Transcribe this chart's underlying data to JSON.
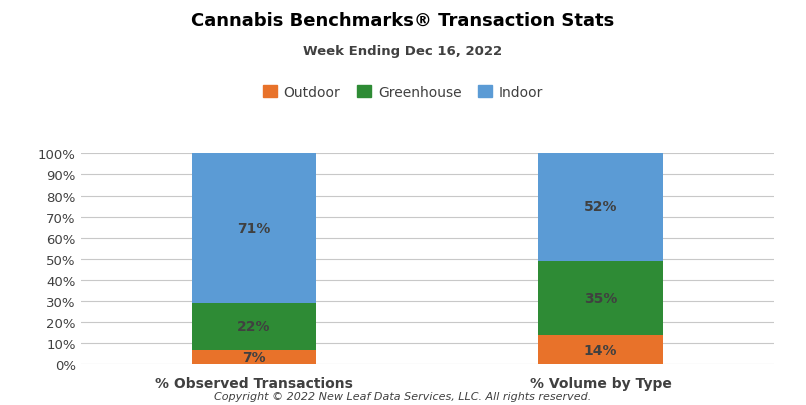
{
  "title": "Cannabis Benchmarks® Transaction Stats",
  "subtitle": "Week Ending Dec 16, 2022",
  "categories": [
    "% Observed Transactions",
    "% Volume by Type"
  ],
  "outdoor": [
    7,
    14
  ],
  "greenhouse": [
    22,
    35
  ],
  "indoor": [
    71,
    52
  ],
  "outdoor_color": "#E8722A",
  "greenhouse_color": "#2E8B35",
  "indoor_color": "#5B9BD5",
  "label_color": "#404040",
  "title_color": "#000000",
  "subtitle_color": "#404040",
  "background_color": "#FFFFFF",
  "footer": "Copyright © 2022 New Leaf Data Services, LLC. All rights reserved.",
  "legend_labels": [
    "Outdoor",
    "Greenhouse",
    "Indoor"
  ],
  "ylim": [
    0,
    100
  ],
  "yticks": [
    0,
    10,
    20,
    30,
    40,
    50,
    60,
    70,
    80,
    90,
    100
  ],
  "bar_width": 0.18,
  "grid_color": "#C8C8C8",
  "tick_label_color": "#404040"
}
